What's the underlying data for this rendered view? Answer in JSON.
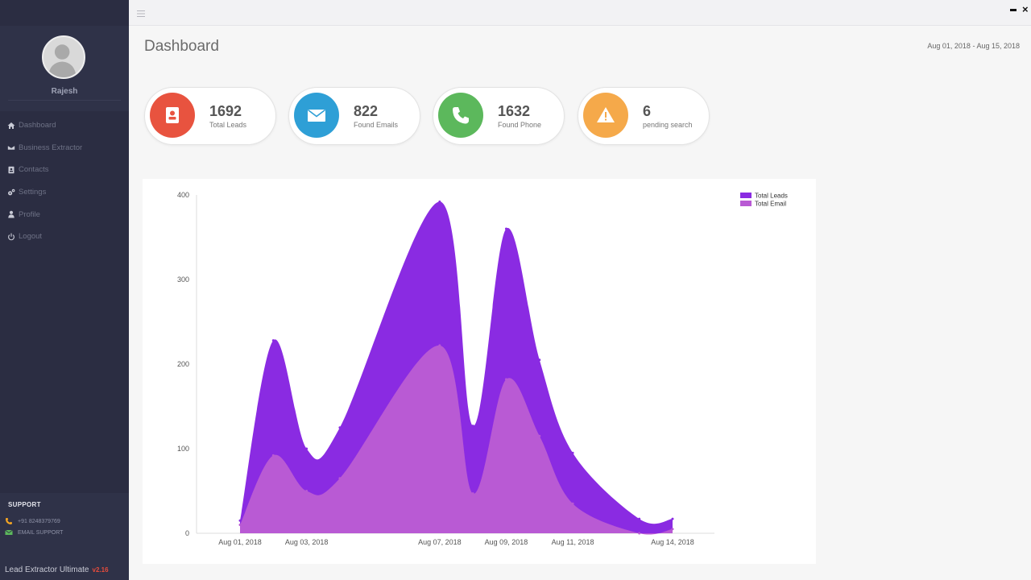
{
  "sidebar": {
    "username": "Rajesh",
    "items": [
      {
        "label": "Dashboard",
        "icon": "home-icon"
      },
      {
        "label": "Business Extractor",
        "icon": "envelope-icon"
      },
      {
        "label": "Contacts",
        "icon": "contacts-icon"
      },
      {
        "label": "Settings",
        "icon": "gears-icon"
      },
      {
        "label": "Profile",
        "icon": "user-icon"
      },
      {
        "label": "Logout",
        "icon": "power-icon"
      }
    ],
    "support": {
      "title": "SUPPORT",
      "phone": "+91 8248379769",
      "email_label": "EMAIL SUPPORT"
    },
    "app_name": "Lead Extractor Ultimate",
    "version": "v2.16"
  },
  "header": {
    "title": "Dashboard",
    "date_range": "Aug 01, 2018 - Aug 15, 2018"
  },
  "stats": [
    {
      "value": "1692",
      "label": "Total Leads",
      "color": "#e8533f",
      "icon": "contact-book-icon"
    },
    {
      "value": "822",
      "label": "Found Emails",
      "color": "#2e9fd6",
      "icon": "envelope-icon"
    },
    {
      "value": "1632",
      "label": "Found Phone",
      "color": "#5cb85c",
      "icon": "phone-icon"
    },
    {
      "value": "6",
      "label": "pending search",
      "color": "#f5a94a",
      "icon": "warning-icon"
    }
  ],
  "chart_data": {
    "type": "area",
    "x_ticks": [
      "Aug 01, 2018",
      "Aug 03, 2018",
      "Aug 07, 2018",
      "Aug 09, 2018",
      "Aug 11, 2018",
      "Aug 14, 2018"
    ],
    "x": [
      "Aug 01, 2018",
      "Aug 02, 2018",
      "Aug 03, 2018",
      "Aug 04, 2018",
      "Aug 07, 2018",
      "Aug 08, 2018",
      "Aug 09, 2018",
      "Aug 10, 2018",
      "Aug 11, 2018",
      "Aug 13, 2018",
      "Aug 14, 2018"
    ],
    "series": [
      {
        "name": "Total Leads",
        "color": "#8a2be2",
        "values": [
          15,
          228,
          100,
          125,
          392,
          127,
          360,
          205,
          95,
          17,
          17
        ]
      },
      {
        "name": "Total Email",
        "color": "#b95ad4",
        "values": [
          10,
          92,
          50,
          65,
          222,
          47,
          182,
          115,
          35,
          0,
          5
        ]
      }
    ],
    "ylim": [
      0,
      400
    ],
    "y_ticks": [
      0,
      100,
      200,
      300,
      400
    ],
    "legend": "top-right"
  }
}
